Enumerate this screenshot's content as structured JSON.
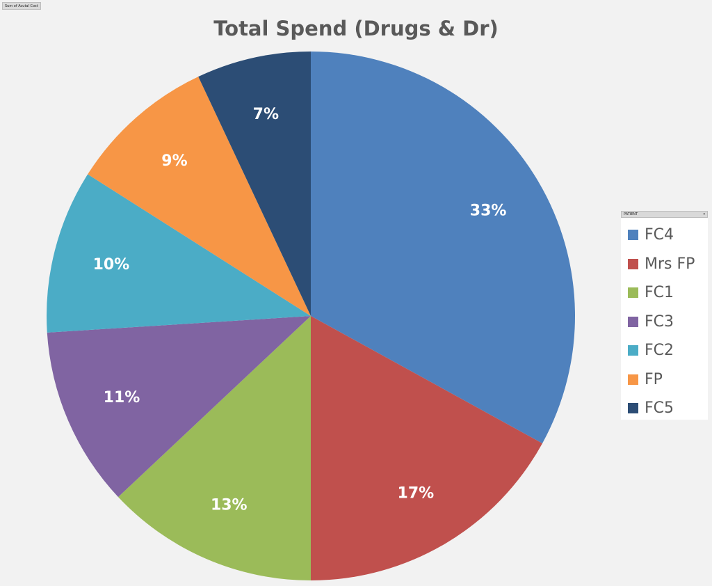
{
  "field_button": "Sum of Acutal Cost",
  "legend_field": {
    "label": "PATIENT",
    "arrow": "▾"
  },
  "chart_data": {
    "type": "pie",
    "title": "Total Spend (Drugs & Dr)",
    "categories": [
      "FC4",
      "Mrs FP",
      "FC1",
      "FC3",
      "FC2",
      "FP",
      "FC5"
    ],
    "values": [
      33,
      17,
      13,
      11,
      10,
      9,
      7
    ],
    "data_labels": [
      "33%",
      "17%",
      "13%",
      "11%",
      "10%",
      "9%",
      "7%"
    ],
    "colors": [
      "#4f81bd",
      "#c0504d",
      "#9bbb59",
      "#8064a2",
      "#4bacc6",
      "#f79646",
      "#2c4d75"
    ],
    "label_color": "#ffffff",
    "legend_position": "right",
    "start_angle_deg": 0,
    "direction": "clockwise"
  }
}
